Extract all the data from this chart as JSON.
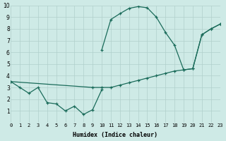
{
  "xlabel": "Humidex (Indice chaleur)",
  "xlim": [
    0,
    23
  ],
  "ylim": [
    0,
    10
  ],
  "xticks": [
    0,
    1,
    2,
    3,
    4,
    5,
    6,
    7,
    8,
    9,
    10,
    11,
    12,
    13,
    14,
    15,
    16,
    17,
    18,
    19,
    20,
    21,
    22,
    23
  ],
  "yticks": [
    1,
    2,
    3,
    4,
    5,
    6,
    7,
    8,
    9,
    10
  ],
  "bg_color": "#ceeae6",
  "line_color": "#1a6b5a",
  "grid_color": "#b0d0cb",
  "line1_x": [
    10,
    11,
    12,
    13,
    14,
    15,
    16,
    17,
    18,
    19,
    20,
    21,
    22,
    23
  ],
  "line1_y": [
    6.2,
    8.8,
    9.3,
    9.75,
    9.9,
    9.8,
    9.0,
    7.7,
    6.6,
    4.5,
    4.6,
    7.5,
    8.0,
    8.4
  ],
  "line2_x": [
    0,
    9,
    10,
    11,
    12,
    13,
    14,
    15,
    16,
    17,
    18,
    19,
    20,
    21,
    22,
    23
  ],
  "line2_y": [
    3.5,
    3.0,
    3.0,
    3.0,
    3.2,
    3.4,
    3.6,
    3.8,
    4.0,
    4.2,
    4.4,
    4.5,
    4.6,
    7.5,
    8.0,
    8.4
  ],
  "line3_x": [
    0,
    1,
    2,
    3,
    4,
    5,
    6,
    7,
    8,
    9,
    10
  ],
  "line3_y": [
    3.5,
    3.0,
    2.5,
    3.0,
    1.7,
    1.6,
    1.0,
    1.4,
    0.7,
    1.1,
    2.8
  ]
}
